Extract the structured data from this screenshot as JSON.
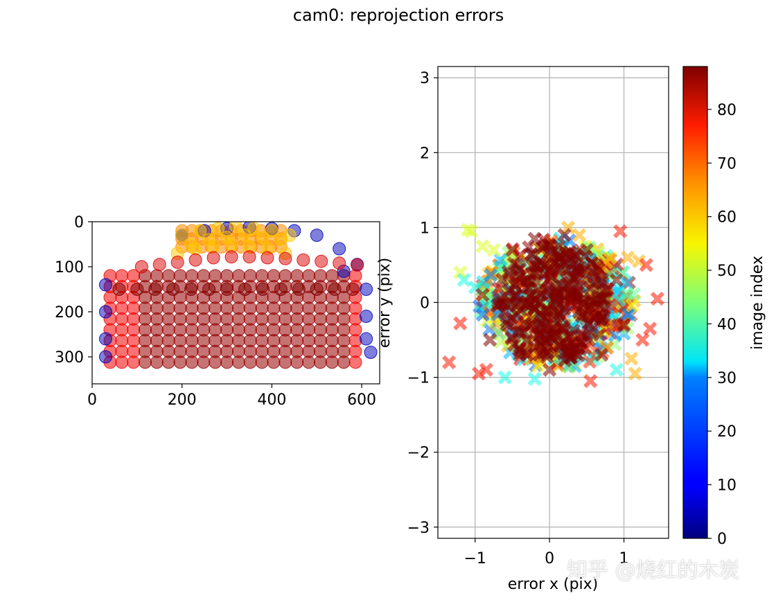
{
  "title": "cam0: reprojection errors",
  "watermark": "知乎 @烧红的木炭",
  "colors": {
    "grid": "#b0b0b0",
    "axis": "#000000",
    "colormap": "jet"
  },
  "chart_data": [
    {
      "type": "scatter",
      "marker": "circle",
      "title": "",
      "xlabel": "",
      "ylabel": "",
      "xlim": [
        0,
        640
      ],
      "ylim": [
        360,
        0
      ],
      "x_ticks": [
        0,
        200,
        400,
        600
      ],
      "y_ticks": [
        0,
        100,
        200,
        300
      ],
      "grid": false,
      "description_of_points": "corner grid points colored by image index",
      "series": [
        {
          "color_index": 5,
          "x": [
            200,
            250,
            300,
            350,
            400,
            450,
            500,
            550,
            590,
            30,
            30,
            30,
            30,
            560,
            610,
            610,
            610,
            620
          ],
          "y": [
            30,
            20,
            15,
            12,
            15,
            20,
            30,
            60,
            95,
            140,
            200,
            260,
            300,
            110,
            150,
            210,
            260,
            290
          ]
        },
        {
          "color_index": 60,
          "x": [
            200,
            240,
            280,
            320,
            360,
            400,
            440,
            220,
            260,
            300,
            340,
            380,
            420,
            190,
            230,
            270,
            310,
            350,
            390,
            430
          ],
          "y": [
            30,
            20,
            15,
            10,
            15,
            20,
            30,
            50,
            40,
            35,
            30,
            35,
            40,
            70,
            60,
            55,
            50,
            55,
            60,
            70
          ]
        },
        {
          "color_index": 80,
          "x": [
            110,
            150,
            190,
            230,
            270,
            310,
            350,
            390,
            430,
            470,
            510,
            550,
            590
          ],
          "y": [
            100,
            95,
            90,
            85,
            80,
            78,
            78,
            80,
            82,
            85,
            88,
            92,
            96
          ]
        },
        {
          "color_index": 88,
          "x": [
            60,
            100,
            140,
            180,
            220,
            260,
            300,
            340,
            380,
            420,
            460,
            500,
            540,
            580
          ],
          "y": [
            150,
            150,
            150,
            150,
            150,
            150,
            150,
            150,
            150,
            150,
            150,
            150,
            150,
            150
          ]
        }
      ]
    },
    {
      "type": "scatter",
      "marker": "x",
      "title": "",
      "xlabel": "error x (pix)",
      "ylabel": "error y (pix)",
      "xlim": [
        -1.5,
        1.6
      ],
      "ylim": [
        -3.15,
        3.15
      ],
      "x_ticks": [
        -1,
        0,
        1
      ],
      "y_ticks": [
        -3,
        -2,
        -1,
        0,
        1,
        2,
        3
      ],
      "x_tick_labels": [
        "−1",
        "0",
        "1"
      ],
      "y_tick_labels": [
        "−3",
        "−2",
        "−1",
        "0",
        "1",
        "2",
        "3"
      ],
      "grid": true,
      "colorbar": {
        "label": "image index",
        "range": [
          0,
          88
        ],
        "ticks": [
          0,
          10,
          20,
          30,
          40,
          50,
          60,
          70,
          80
        ],
        "colormap": "jet"
      },
      "series": [
        {
          "color_index": 52,
          "x": [
            -1.1,
            -1.05,
            -0.9,
            -0.75,
            -1.2
          ],
          "y": [
            0.97,
            0.95,
            0.75,
            0.7,
            0.4
          ]
        },
        {
          "color_index": 35,
          "x": [
            -1.15,
            -0.6,
            -0.2,
            0.9,
            -1.0
          ],
          "y": [
            0.3,
            -1.0,
            -1.02,
            -0.9,
            0.2
          ]
        },
        {
          "color_index": 62,
          "x": [
            1.1,
            1.15,
            0.25,
            0.4,
            1.2,
            1.05
          ],
          "y": [
            -0.75,
            -0.95,
            1.0,
            0.9,
            0.55,
            0.6
          ]
        },
        {
          "color_index": 75,
          "x": [
            -1.35,
            -1.2,
            -0.95,
            -0.85,
            1.3,
            1.45,
            1.35,
            0.55,
            0.95,
            1.25
          ],
          "y": [
            -0.8,
            -0.28,
            -0.95,
            -0.9,
            0.5,
            0.05,
            -0.35,
            -1.05,
            0.95,
            -0.5
          ]
        },
        {
          "color_index": 88,
          "x": [
            -0.9,
            -0.5,
            -0.2,
            0.2,
            0.5,
            0.9,
            1.0,
            0.7,
            0.0,
            -0.4,
            -0.8,
            -0.3,
            0.3,
            0.6,
            -0.1
          ],
          "y": [
            0.1,
            0.7,
            0.85,
            0.9,
            0.7,
            0.3,
            -0.3,
            -0.7,
            -0.9,
            -0.7,
            -0.5,
            0.2,
            0.1,
            -0.2,
            -0.3
          ]
        }
      ]
    }
  ]
}
